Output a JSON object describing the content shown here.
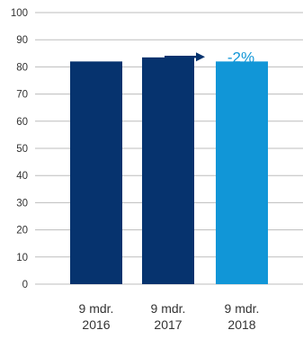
{
  "chart_data": {
    "type": "bar",
    "categories": [
      "9 mdr. 2016",
      "9 mdr. 2017",
      "9 mdr. 2018"
    ],
    "category_lines": [
      [
        "9 mdr.",
        "2016"
      ],
      [
        "9 mdr.",
        "2017"
      ],
      [
        "9 mdr.",
        "2018"
      ]
    ],
    "values": [
      82,
      83.5,
      82
    ],
    "bar_colors": [
      "#06336e",
      "#06336e",
      "#1196d7"
    ],
    "ylim": [
      0,
      100
    ],
    "yticks": [
      0,
      10,
      20,
      30,
      40,
      50,
      60,
      70,
      80,
      90,
      100
    ],
    "grid": true,
    "title": "",
    "xlabel": "",
    "ylabel": "",
    "annotation": {
      "text": "-2%",
      "color": "#1196d7",
      "arrow_color": "#06336e",
      "arrow_from_category": 1,
      "arrow_to_category": 2,
      "arrow_y": 87
    },
    "colors": {
      "grid": "#bdbdbd",
      "tick_text": "#333333",
      "category_text": "#333333"
    }
  }
}
